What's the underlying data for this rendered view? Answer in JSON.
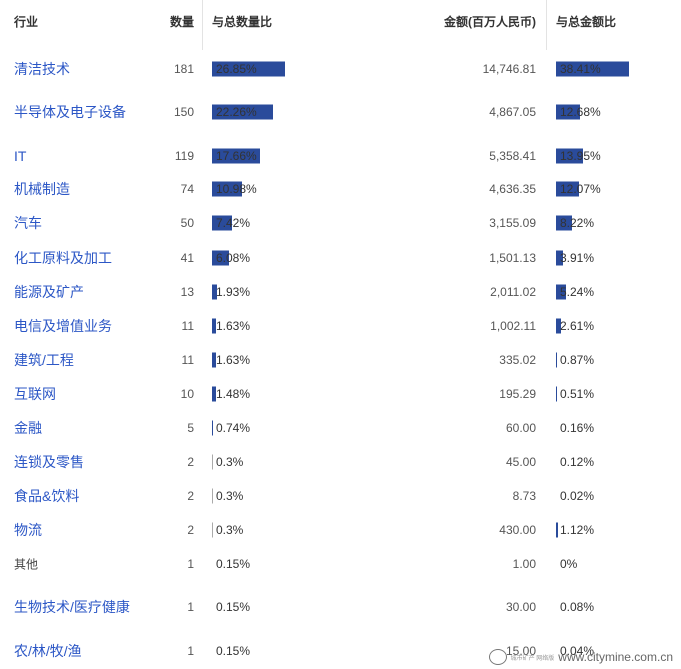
{
  "header": {
    "industry": "行业",
    "count": "数量",
    "count_pct": "与总数量比",
    "amount": "金额(百万人民币)",
    "amount_pct": "与总金额比"
  },
  "rows": [
    {
      "industry": "清洁技术",
      "count": "181",
      "count_pct": "26.85%",
      "amount": "14,746.81",
      "amount_pct": "38.41%",
      "link": true
    },
    {
      "industry": "半导体及电子设备",
      "count": "150",
      "count_pct": "22.26%",
      "amount": "4,867.05",
      "amount_pct": "12.68%",
      "link": true
    },
    {
      "industry": "IT",
      "count": "119",
      "count_pct": "17.66%",
      "amount": "5,358.41",
      "amount_pct": "13.95%",
      "link": true
    },
    {
      "industry": "机械制造",
      "count": "74",
      "count_pct": "10.98%",
      "amount": "4,636.35",
      "amount_pct": "12.07%",
      "link": true
    },
    {
      "industry": "汽车",
      "count": "50",
      "count_pct": "7.42%",
      "amount": "3,155.09",
      "amount_pct": "8.22%",
      "link": true
    },
    {
      "industry": "化工原料及加工",
      "count": "41",
      "count_pct": "6.08%",
      "amount": "1,501.13",
      "amount_pct": "3.91%",
      "link": true
    },
    {
      "industry": "能源及矿产",
      "count": "13",
      "count_pct": "1.93%",
      "amount": "2,011.02",
      "amount_pct": "5.24%",
      "link": true
    },
    {
      "industry": "电信及增值业务",
      "count": "11",
      "count_pct": "1.63%",
      "amount": "1,002.11",
      "amount_pct": "2.61%",
      "link": true
    },
    {
      "industry": "建筑/工程",
      "count": "11",
      "count_pct": "1.63%",
      "amount": "335.02",
      "amount_pct": "0.87%",
      "link": true
    },
    {
      "industry": "互联网",
      "count": "10",
      "count_pct": "1.48%",
      "amount": "195.29",
      "amount_pct": "0.51%",
      "link": true
    },
    {
      "industry": "金融",
      "count": "5",
      "count_pct": "0.74%",
      "amount": "60.00",
      "amount_pct": "0.16%",
      "link": true
    },
    {
      "industry": "连锁及零售",
      "count": "2",
      "count_pct": "0.3%",
      "amount": "45.00",
      "amount_pct": "0.12%",
      "link": true
    },
    {
      "industry": "食品&饮料",
      "count": "2",
      "count_pct": "0.3%",
      "amount": "8.73",
      "amount_pct": "0.02%",
      "link": true
    },
    {
      "industry": "物流",
      "count": "2",
      "count_pct": "0.3%",
      "amount": "430.00",
      "amount_pct": "1.12%",
      "link": true
    },
    {
      "industry": "其他",
      "count": "1",
      "count_pct": "0.15%",
      "amount": "1.00",
      "amount_pct": "0%",
      "link": false
    },
    {
      "industry": "生物技术/医疗健康",
      "count": "1",
      "count_pct": "0.15%",
      "amount": "30.00",
      "amount_pct": "0.08%",
      "link": true
    },
    {
      "industry": "农/林/牧/渔",
      "count": "1",
      "count_pct": "0.15%",
      "amount": "15.00",
      "amount_pct": "0.04%",
      "link": true
    }
  ],
  "watermark": {
    "text": "www.citymine.com.cn",
    "small": "城市矿产 网络版"
  },
  "colors": {
    "link": "#2c57c6",
    "bar": "#2a4b9b"
  }
}
